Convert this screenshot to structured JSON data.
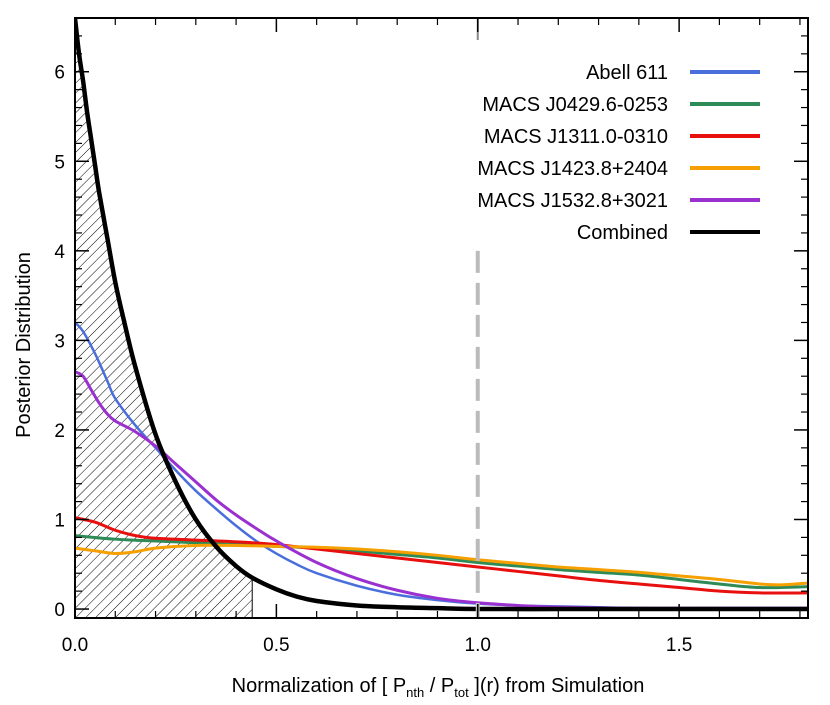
{
  "chart_data": {
    "type": "line",
    "title": "",
    "xlabel": {
      "prefix": "Normalization of [ P",
      "sub1": "nth",
      "middle": " / P",
      "sub2": "tot",
      "suffix": " ](r) from Simulation"
    },
    "ylabel": "Posterior Distribution",
    "xlim": [
      0.0,
      1.82
    ],
    "ylim": [
      -0.1,
      6.6
    ],
    "x_ticks": [
      {
        "value": 0.0,
        "label": "0.0"
      },
      {
        "value": 0.5,
        "label": "0.5"
      },
      {
        "value": 1.0,
        "label": "1.0"
      },
      {
        "value": 1.5,
        "label": "1.5"
      }
    ],
    "y_ticks": [
      {
        "value": 0,
        "label": "0"
      },
      {
        "value": 1,
        "label": "1"
      },
      {
        "value": 2,
        "label": "2"
      },
      {
        "value": 3,
        "label": "3"
      },
      {
        "value": 4,
        "label": "4"
      },
      {
        "value": 5,
        "label": "5"
      },
      {
        "value": 6,
        "label": "6"
      }
    ],
    "legend_position": "top-right",
    "grid": false,
    "reference_line": {
      "x": 1.0,
      "y_top": 4.0,
      "style": "dashed",
      "color": "#bbbbbb"
    },
    "excluded_region": {
      "x_from": 0.0,
      "x_to": 0.44,
      "pattern": "hatched",
      "under_series": "Combined"
    },
    "series": [
      {
        "name": "Abell 611",
        "color": "#4a6fdc",
        "width": 2.5,
        "x": [
          0.0,
          0.02,
          0.05,
          0.08,
          0.1,
          0.15,
          0.2,
          0.25,
          0.3,
          0.35,
          0.4,
          0.45,
          0.5,
          0.55,
          0.6,
          0.7,
          0.8,
          0.9,
          1.0,
          1.1,
          1.2,
          1.3,
          1.4,
          1.5,
          1.6,
          1.7,
          1.82
        ],
        "y": [
          3.2,
          3.1,
          2.85,
          2.55,
          2.35,
          2.05,
          1.8,
          1.55,
          1.32,
          1.12,
          0.93,
          0.76,
          0.62,
          0.5,
          0.4,
          0.26,
          0.16,
          0.1,
          0.06,
          0.04,
          0.03,
          0.02,
          0.01,
          0.01,
          0.01,
          0.01,
          0.01
        ]
      },
      {
        "name": "MACS J0429.6-0253",
        "color": "#2e8b57",
        "width": 3,
        "x": [
          0.0,
          0.1,
          0.2,
          0.3,
          0.4,
          0.5,
          0.6,
          0.7,
          0.8,
          0.9,
          1.0,
          1.1,
          1.2,
          1.3,
          1.4,
          1.5,
          1.6,
          1.7,
          1.82
        ],
        "y": [
          0.82,
          0.78,
          0.76,
          0.74,
          0.72,
          0.7,
          0.68,
          0.65,
          0.61,
          0.57,
          0.52,
          0.48,
          0.44,
          0.41,
          0.38,
          0.33,
          0.28,
          0.24,
          0.25
        ]
      },
      {
        "name": "MACS J1311.0-0310",
        "color": "#e8100e",
        "width": 3,
        "x": [
          0.0,
          0.05,
          0.1,
          0.15,
          0.2,
          0.3,
          0.4,
          0.5,
          0.6,
          0.7,
          0.8,
          0.9,
          1.0,
          1.1,
          1.2,
          1.3,
          1.4,
          1.5,
          1.6,
          1.7,
          1.82
        ],
        "y": [
          1.02,
          0.97,
          0.88,
          0.82,
          0.79,
          0.77,
          0.75,
          0.72,
          0.67,
          0.62,
          0.57,
          0.52,
          0.47,
          0.42,
          0.37,
          0.32,
          0.28,
          0.24,
          0.2,
          0.18,
          0.18
        ]
      },
      {
        "name": "MACS J1423.8+2404",
        "color": "#f5a000",
        "width": 3,
        "x": [
          0.0,
          0.05,
          0.1,
          0.15,
          0.2,
          0.3,
          0.4,
          0.5,
          0.6,
          0.7,
          0.8,
          0.9,
          1.0,
          1.1,
          1.2,
          1.3,
          1.4,
          1.5,
          1.6,
          1.7,
          1.75,
          1.82
        ],
        "y": [
          0.68,
          0.65,
          0.62,
          0.64,
          0.68,
          0.71,
          0.71,
          0.7,
          0.69,
          0.67,
          0.64,
          0.6,
          0.55,
          0.51,
          0.47,
          0.44,
          0.41,
          0.37,
          0.33,
          0.28,
          0.27,
          0.29
        ]
      },
      {
        "name": "MACS J1532.8+3021",
        "color": "#9b30d0",
        "width": 3,
        "x": [
          0.0,
          0.02,
          0.04,
          0.06,
          0.08,
          0.1,
          0.15,
          0.2,
          0.25,
          0.3,
          0.35,
          0.4,
          0.45,
          0.5,
          0.6,
          0.7,
          0.8,
          0.9,
          1.0,
          1.1,
          1.2,
          1.4,
          1.6,
          1.82
        ],
        "y": [
          2.65,
          2.6,
          2.45,
          2.3,
          2.18,
          2.1,
          1.98,
          1.82,
          1.62,
          1.42,
          1.22,
          1.05,
          0.9,
          0.76,
          0.52,
          0.34,
          0.21,
          0.12,
          0.07,
          0.04,
          0.02,
          0.01,
          0.01,
          0.01
        ]
      },
      {
        "name": "Combined",
        "color": "#000000",
        "width": 4.5,
        "x": [
          0.0,
          0.01,
          0.02,
          0.03,
          0.04,
          0.05,
          0.06,
          0.08,
          0.1,
          0.12,
          0.15,
          0.2,
          0.25,
          0.3,
          0.35,
          0.4,
          0.44,
          0.5,
          0.55,
          0.6,
          0.7,
          0.8,
          0.9,
          1.0,
          1.2,
          1.4,
          1.6,
          1.82
        ],
        "y": [
          6.6,
          6.2,
          5.9,
          5.55,
          5.25,
          4.95,
          4.65,
          4.15,
          3.65,
          3.25,
          2.7,
          1.95,
          1.42,
          1.0,
          0.7,
          0.48,
          0.35,
          0.22,
          0.14,
          0.09,
          0.04,
          0.02,
          0.01,
          0.0,
          0.0,
          0.0,
          0.0,
          0.0
        ]
      }
    ]
  }
}
